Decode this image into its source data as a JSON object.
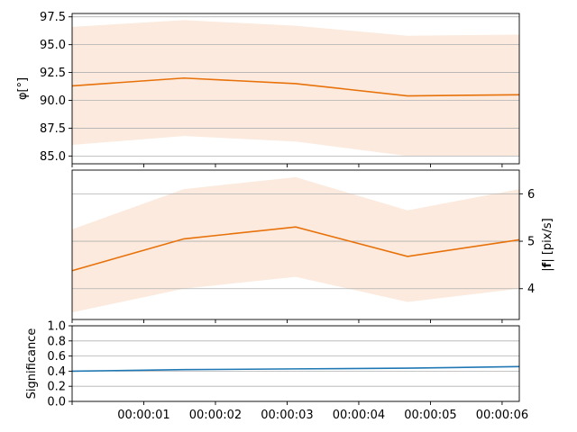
{
  "chart_data": [
    {
      "type": "line",
      "ylabel": "φ[°]",
      "ylim": [
        84.3,
        97.8
      ],
      "yticks": [
        "85.0",
        "87.5",
        "90.0",
        "92.5",
        "95.0",
        "97.5"
      ],
      "grid": true,
      "x_seconds": [
        0,
        1.56,
        3.12,
        4.68,
        6.24
      ],
      "series": [
        {
          "color": "#e8710a",
          "values": [
            91.3,
            92.0,
            91.5,
            90.4,
            90.5
          ],
          "band_lower": [
            86.0,
            86.8,
            86.3,
            85.0,
            85.0
          ],
          "band_upper": [
            96.6,
            97.2,
            96.7,
            95.8,
            95.9
          ],
          "band_color": "#fbeadd"
        }
      ]
    },
    {
      "type": "line",
      "ylabel": "|f| [pix/s]",
      "ylabel_bold_part": "f",
      "ylim": [
        3.35,
        6.5
      ],
      "yticks": [
        "4",
        "5",
        "6"
      ],
      "yaxis_side": "right",
      "grid": true,
      "x_seconds": [
        0,
        1.56,
        3.12,
        4.68,
        6.24
      ],
      "series": [
        {
          "color": "#e8710a",
          "values": [
            4.38,
            5.05,
            5.3,
            4.68,
            5.03
          ],
          "band_lower": [
            3.5,
            4.0,
            4.25,
            3.72,
            4.0
          ],
          "band_upper": [
            5.25,
            6.1,
            6.35,
            5.65,
            6.1
          ],
          "band_color": "#fbeadd"
        }
      ]
    },
    {
      "type": "line",
      "ylabel": "Significance",
      "ylim": [
        0.0,
        1.0
      ],
      "yticks": [
        "0.0",
        "0.2",
        "0.4",
        "0.6",
        "0.8",
        "1.0"
      ],
      "grid": true,
      "x_seconds": [
        0,
        1.56,
        3.12,
        4.68,
        6.24
      ],
      "xtick_labels": [
        "00:00:01",
        "00:00:02",
        "00:00:03",
        "00:00:04",
        "00:00:05",
        "00:00:06"
      ],
      "xlim_seconds": [
        0,
        6.24
      ],
      "series": [
        {
          "color": "#1f77b4",
          "values": [
            0.4,
            0.42,
            0.43,
            0.44,
            0.46
          ]
        }
      ]
    }
  ]
}
